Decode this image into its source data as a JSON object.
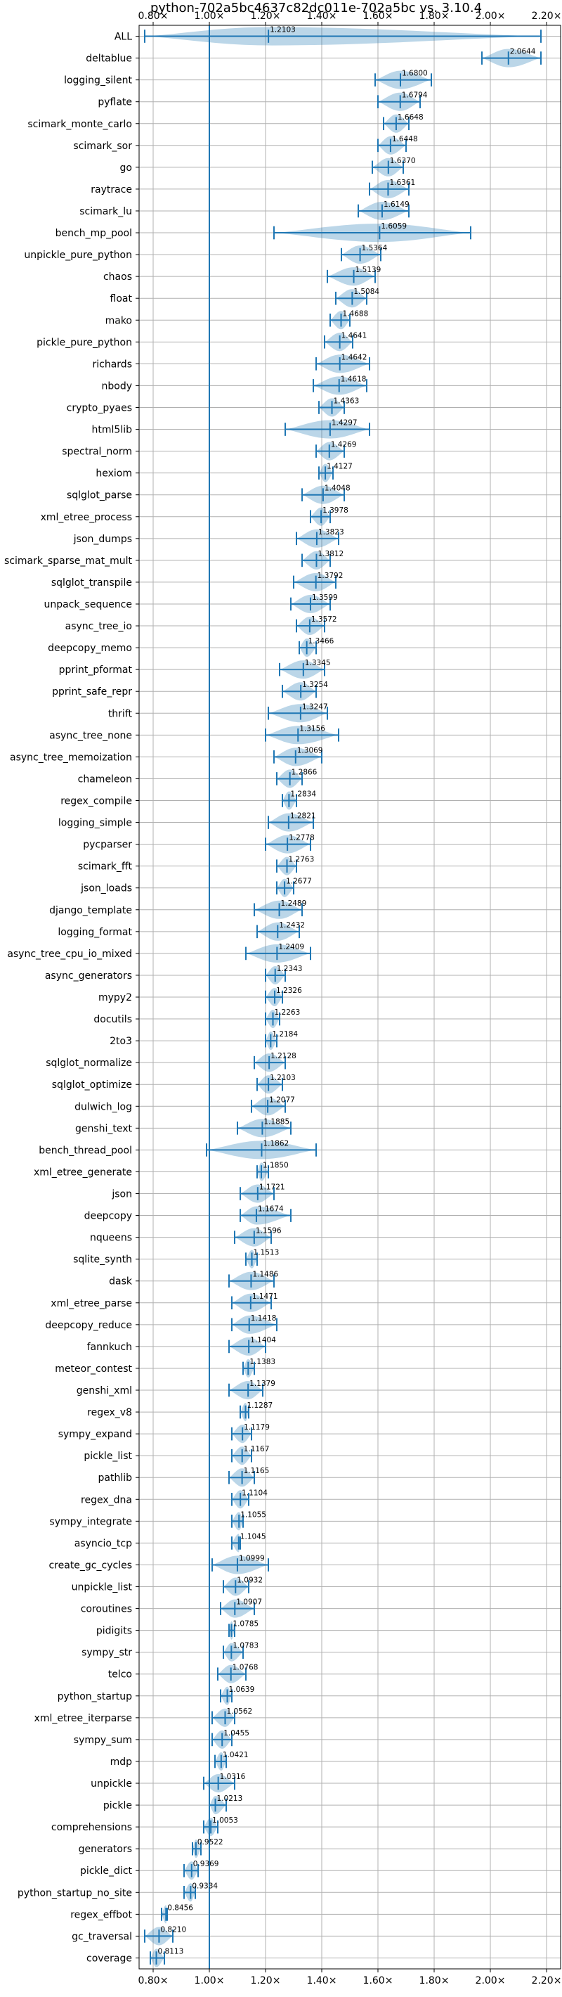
{
  "chart_data": {
    "type": "violin",
    "title": "python-702a5bc4637c82dc011e-702a5bc vs. 3.10.4",
    "orientation": "horizontal",
    "xlim": [
      0.75,
      2.25
    ],
    "xticks": [
      0.8,
      1.0,
      1.2,
      1.4,
      1.6,
      1.8,
      2.0,
      2.2
    ],
    "xtick_labels": [
      "0.80×",
      "1.00×",
      "1.20×",
      "1.40×",
      "1.60×",
      "1.80×",
      "2.00×",
      "2.20×"
    ],
    "reference_line": 1.0,
    "grid": true,
    "categories": [
      "ALL",
      "deltablue",
      "logging_silent",
      "pyflate",
      "scimark_monte_carlo",
      "scimark_sor",
      "go",
      "raytrace",
      "scimark_lu",
      "bench_mp_pool",
      "unpickle_pure_python",
      "chaos",
      "float",
      "mako",
      "pickle_pure_python",
      "richards",
      "nbody",
      "crypto_pyaes",
      "html5lib",
      "spectral_norm",
      "hexiom",
      "sqlglot_parse",
      "xml_etree_process",
      "json_dumps",
      "scimark_sparse_mat_mult",
      "sqlglot_transpile",
      "unpack_sequence",
      "async_tree_io",
      "deepcopy_memo",
      "pprint_pformat",
      "pprint_safe_repr",
      "thrift",
      "async_tree_none",
      "async_tree_memoization",
      "chameleon",
      "regex_compile",
      "logging_simple",
      "pycparser",
      "scimark_fft",
      "json_loads",
      "django_template",
      "logging_format",
      "async_tree_cpu_io_mixed",
      "async_generators",
      "mypy2",
      "docutils",
      "2to3",
      "sqlglot_normalize",
      "sqlglot_optimize",
      "dulwich_log",
      "genshi_text",
      "bench_thread_pool",
      "xml_etree_generate",
      "json",
      "deepcopy",
      "nqueens",
      "sqlite_synth",
      "dask",
      "xml_etree_parse",
      "deepcopy_reduce",
      "fannkuch",
      "meteor_contest",
      "genshi_xml",
      "regex_v8",
      "sympy_expand",
      "pickle_list",
      "pathlib",
      "regex_dna",
      "sympy_integrate",
      "asyncio_tcp",
      "create_gc_cycles",
      "unpickle_list",
      "coroutines",
      "pidigits",
      "sympy_str",
      "telco",
      "python_startup",
      "xml_etree_iterparse",
      "sympy_sum",
      "mdp",
      "unpickle",
      "pickle",
      "comprehensions",
      "generators",
      "pickle_dict",
      "python_startup_no_site",
      "regex_effbot",
      "gc_traversal",
      "coverage"
    ],
    "values": [
      1.2103,
      2.0644,
      1.68,
      1.6794,
      1.6648,
      1.6448,
      1.637,
      1.6361,
      1.6149,
      1.6059,
      1.5364,
      1.5139,
      1.5084,
      1.4688,
      1.4641,
      1.4642,
      1.4618,
      1.4363,
      1.4297,
      1.4269,
      1.4127,
      1.4048,
      1.3978,
      1.3823,
      1.3812,
      1.3792,
      1.3599,
      1.3572,
      1.3466,
      1.3345,
      1.3254,
      1.3247,
      1.3156,
      1.3069,
      1.2866,
      1.2834,
      1.2821,
      1.2778,
      1.2763,
      1.2677,
      1.2489,
      1.2432,
      1.2409,
      1.2343,
      1.2326,
      1.2263,
      1.2184,
      1.2128,
      1.2103,
      1.2077,
      1.1885,
      1.1862,
      1.185,
      1.1721,
      1.1674,
      1.1596,
      1.1513,
      1.1486,
      1.1471,
      1.1418,
      1.1404,
      1.1383,
      1.1379,
      1.1287,
      1.1179,
      1.1167,
      1.1165,
      1.1104,
      1.1055,
      1.1045,
      1.0999,
      1.0932,
      1.0907,
      1.0785,
      1.0783,
      1.0768,
      1.0639,
      1.0562,
      1.0455,
      1.0421,
      1.0316,
      1.0213,
      1.0053,
      0.9522,
      0.9369,
      0.9334,
      0.8456,
      0.821,
      0.8113
    ],
    "value_labels": [
      "1.2103",
      "2.0644",
      "1.6800",
      "1.6794",
      "1.6648",
      "1.6448",
      "1.6370",
      "1.6361",
      "1.6149",
      "1.6059",
      "1.5364",
      "1.5139",
      "1.5084",
      "1.4688",
      "1.4641",
      "1.4642",
      "1.4618",
      "1.4363",
      "1.4297",
      "1.4269",
      "1.4127",
      "1.4048",
      "1.3978",
      "1.3823",
      "1.3812",
      "1.3792",
      "1.3599",
      "1.3572",
      "1.3466",
      "1.3345",
      "1.3254",
      "1.3247",
      "1.3156",
      "1.3069",
      "1.2866",
      "1.2834",
      "1.2821",
      "1.2778",
      "1.2763",
      "1.2677",
      "1.2489",
      "1.2432",
      "1.2409",
      "1.2343",
      "1.2326",
      "1.2263",
      "1.2184",
      "1.2128",
      "1.2103",
      "1.2077",
      "1.1885",
      "1.1862",
      "1.1850",
      "1.1721",
      "1.1674",
      "1.1596",
      "1.1513",
      "1.1486",
      "1.1471",
      "1.1418",
      "1.1404",
      "1.1383",
      "1.1379",
      "1.1287",
      "1.1179",
      "1.1167",
      "1.1165",
      "1.1104",
      "1.1055",
      "1.1045",
      "1.0999",
      "1.0932",
      "1.0907",
      "1.0785",
      "1.0783",
      "1.0768",
      "1.0639",
      "1.0562",
      "1.0455",
      "1.0421",
      "1.0316",
      "1.0213",
      "1.0053",
      "0.9522",
      "0.9369",
      "0.9334",
      "0.8456",
      "0.8210",
      "0.8113"
    ],
    "ranges": [
      [
        0.77,
        2.18
      ],
      [
        1.97,
        2.18
      ],
      [
        1.59,
        1.79
      ],
      [
        1.6,
        1.75
      ],
      [
        1.62,
        1.71
      ],
      [
        1.6,
        1.7
      ],
      [
        1.58,
        1.69
      ],
      [
        1.57,
        1.71
      ],
      [
        1.53,
        1.71
      ],
      [
        1.23,
        1.93
      ],
      [
        1.47,
        1.61
      ],
      [
        1.42,
        1.59
      ],
      [
        1.45,
        1.56
      ],
      [
        1.43,
        1.5
      ],
      [
        1.41,
        1.51
      ],
      [
        1.38,
        1.57
      ],
      [
        1.37,
        1.56
      ],
      [
        1.39,
        1.48
      ],
      [
        1.27,
        1.57
      ],
      [
        1.38,
        1.48
      ],
      [
        1.39,
        1.44
      ],
      [
        1.33,
        1.48
      ],
      [
        1.36,
        1.43
      ],
      [
        1.31,
        1.46
      ],
      [
        1.33,
        1.43
      ],
      [
        1.3,
        1.45
      ],
      [
        1.29,
        1.43
      ],
      [
        1.31,
        1.41
      ],
      [
        1.32,
        1.38
      ],
      [
        1.25,
        1.41
      ],
      [
        1.26,
        1.38
      ],
      [
        1.21,
        1.42
      ],
      [
        1.2,
        1.46
      ],
      [
        1.23,
        1.4
      ],
      [
        1.24,
        1.33
      ],
      [
        1.26,
        1.31
      ],
      [
        1.21,
        1.37
      ],
      [
        1.2,
        1.36
      ],
      [
        1.24,
        1.31
      ],
      [
        1.24,
        1.3
      ],
      [
        1.16,
        1.33
      ],
      [
        1.17,
        1.32
      ],
      [
        1.13,
        1.36
      ],
      [
        1.2,
        1.27
      ],
      [
        1.2,
        1.26
      ],
      [
        1.2,
        1.25
      ],
      [
        1.2,
        1.24
      ],
      [
        1.16,
        1.27
      ],
      [
        1.17,
        1.26
      ],
      [
        1.15,
        1.27
      ],
      [
        1.1,
        1.29
      ],
      [
        0.99,
        1.38
      ],
      [
        1.17,
        1.21
      ],
      [
        1.11,
        1.23
      ],
      [
        1.11,
        1.29
      ],
      [
        1.09,
        1.22
      ],
      [
        1.13,
        1.17
      ],
      [
        1.07,
        1.23
      ],
      [
        1.08,
        1.22
      ],
      [
        1.08,
        1.24
      ],
      [
        1.07,
        1.2
      ],
      [
        1.12,
        1.16
      ],
      [
        1.07,
        1.19
      ],
      [
        1.11,
        1.14
      ],
      [
        1.08,
        1.15
      ],
      [
        1.08,
        1.15
      ],
      [
        1.07,
        1.16
      ],
      [
        1.08,
        1.14
      ],
      [
        1.08,
        1.12
      ],
      [
        1.08,
        1.11
      ],
      [
        1.01,
        1.21
      ],
      [
        1.05,
        1.14
      ],
      [
        1.04,
        1.16
      ],
      [
        1.07,
        1.09
      ],
      [
        1.05,
        1.12
      ],
      [
        1.03,
        1.13
      ],
      [
        1.04,
        1.08
      ],
      [
        1.01,
        1.09
      ],
      [
        1.01,
        1.08
      ],
      [
        1.02,
        1.06
      ],
      [
        0.98,
        1.09
      ],
      [
        1.0,
        1.06
      ],
      [
        0.98,
        1.03
      ],
      [
        0.94,
        0.97
      ],
      [
        0.91,
        0.96
      ],
      [
        0.91,
        0.95
      ],
      [
        0.83,
        0.85
      ],
      [
        0.77,
        0.87
      ],
      [
        0.79,
        0.84
      ]
    ]
  }
}
